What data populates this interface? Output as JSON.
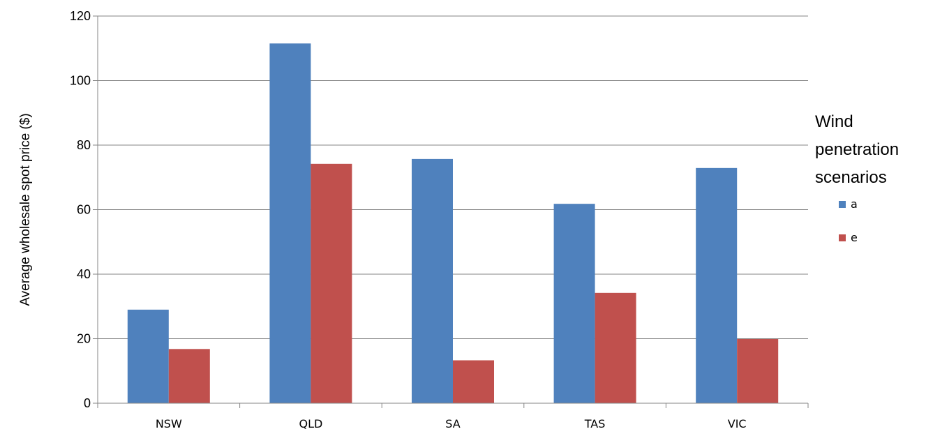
{
  "chart_data": {
    "type": "bar",
    "categories": [
      "NSW",
      "QLD",
      "SA",
      "TAS",
      "VIC"
    ],
    "series": [
      {
        "name": "a",
        "values": [
          29,
          111.5,
          75.7,
          61.8,
          72.9
        ],
        "color": "#4F81BD"
      },
      {
        "name": "e",
        "values": [
          16.8,
          74.2,
          13.3,
          34.2,
          19.9
        ],
        "color": "#C0504D"
      }
    ],
    "ylabel": "Average wholesale spot price ($)",
    "xlabel": "",
    "ylim": [
      0,
      120
    ],
    "yticks": [
      "0",
      "20",
      "40",
      "60",
      "80",
      "100",
      "120"
    ],
    "grid": true,
    "legend": {
      "title_lines": [
        "Wind",
        "penetration",
        "scenarios"
      ],
      "placement": "right"
    }
  }
}
